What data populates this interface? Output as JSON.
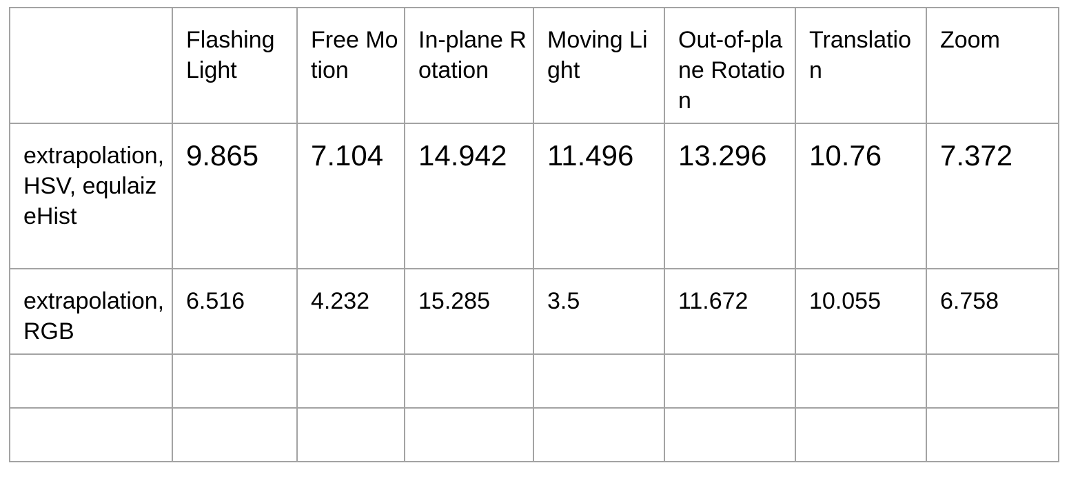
{
  "table": {
    "columns": [
      "",
      "Flashing Light",
      "Free Motion",
      "In-plane Rotation",
      "Moving Light",
      "Out-of-plane Rotation",
      "Translation",
      "Zoom"
    ],
    "rows": [
      {
        "label": "extrapolation, HSV, equlaizeHist",
        "values": [
          "9.865",
          "7.104",
          "14.942",
          "11.496",
          "13.296",
          "10.76",
          "7.372"
        ]
      },
      {
        "label": "extrapolation, RGB",
        "values": [
          "6.516",
          "4.232",
          "15.285",
          "3.5",
          "11.672",
          "10.055",
          "6.758"
        ]
      },
      {
        "label": "",
        "values": [
          "",
          "",
          "",
          "",
          "",
          "",
          ""
        ]
      },
      {
        "label": "",
        "values": [
          "",
          "",
          "",
          "",
          "",
          "",
          ""
        ]
      }
    ]
  },
  "colors": {
    "border": "#a3a3a3",
    "text": "#000000",
    "background": "#ffffff"
  }
}
